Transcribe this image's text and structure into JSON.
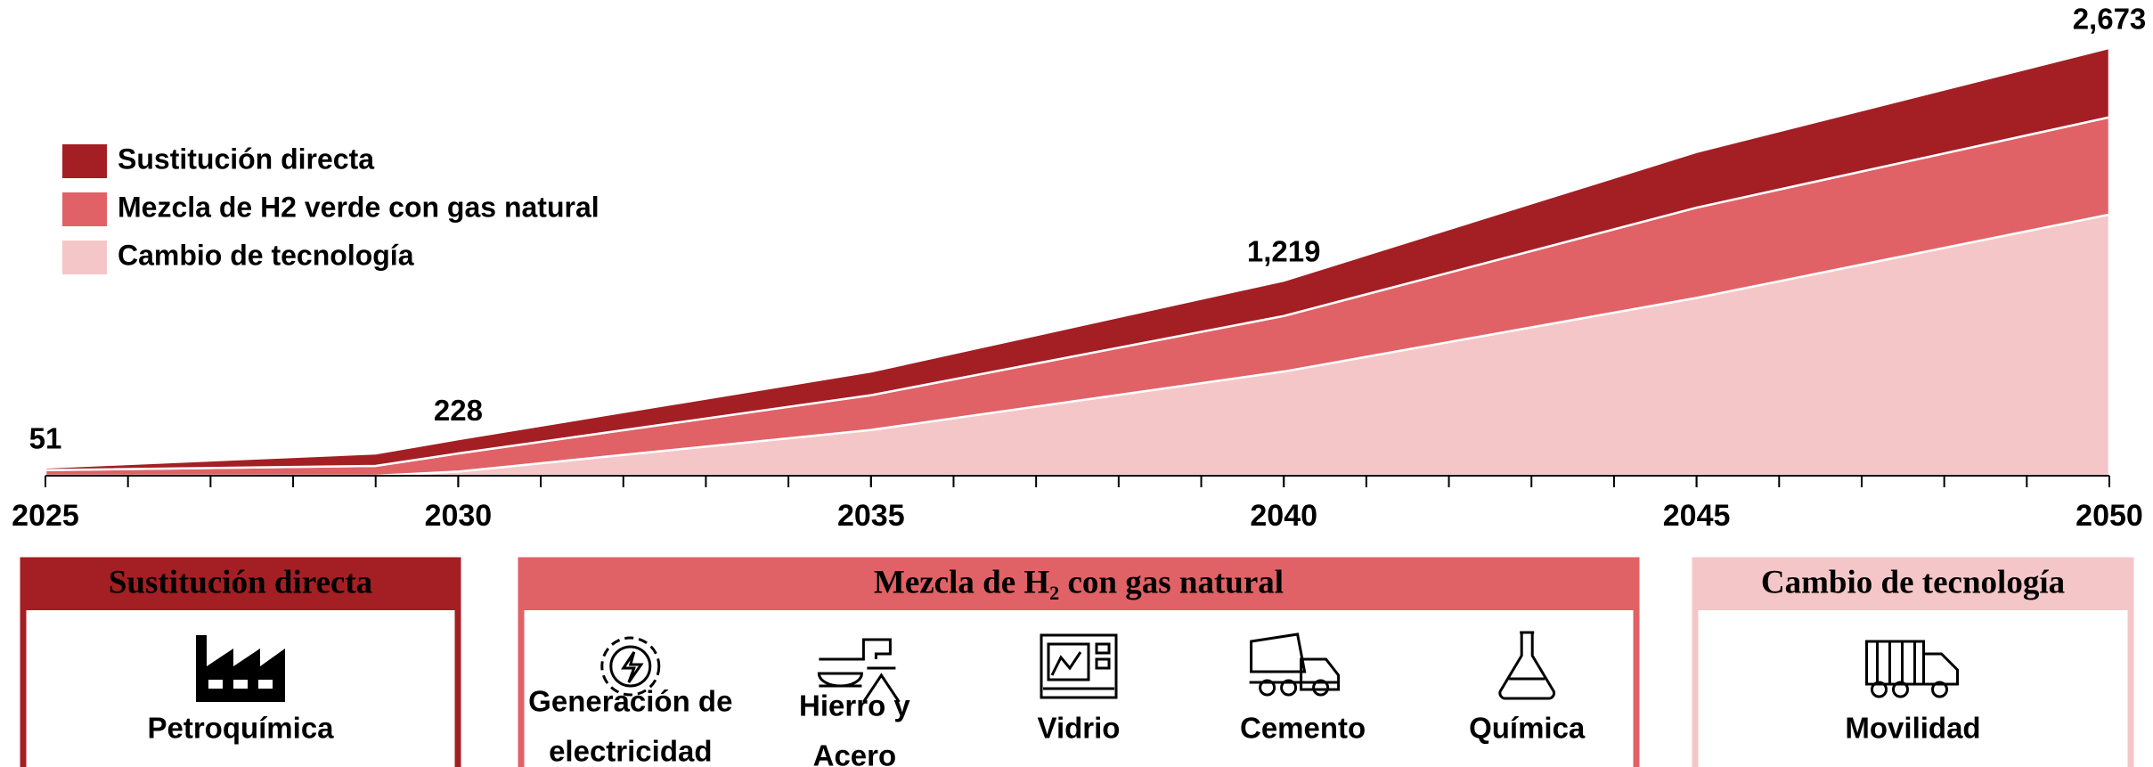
{
  "chart_data": {
    "type": "area",
    "x": [
      2025,
      2029,
      2030,
      2035,
      2040,
      2045,
      2050
    ],
    "series": [
      {
        "name": "Sustitución directa",
        "color": "#a31f24",
        "values": [
          16,
          78,
          89,
          148,
          221,
          348,
          433
        ]
      },
      {
        "name": "Mezcla de H2 verde con gas natural",
        "color": "#e06266",
        "values": [
          35,
          61,
          113,
          217,
          347,
          564,
          608
        ]
      },
      {
        "name": "Cambio de tecnología",
        "color": "#f5c6c8",
        "values": [
          0,
          0,
          26,
          286,
          651,
          1111,
          1632
        ]
      }
    ],
    "totals": {
      "x": [
        2025,
        2030,
        2040,
        2050
      ],
      "values": [
        51,
        228,
        1219,
        2673
      ],
      "value_labels": [
        "51",
        "228",
        "1,219",
        "2,673"
      ]
    },
    "xlim": [
      2025,
      2050
    ],
    "xticks": [
      2025,
      2030,
      2035,
      2040,
      2045,
      2050
    ],
    "xminorticks": [
      2025,
      2026,
      2027,
      2028,
      2029,
      2030,
      2031,
      2032,
      2033,
      2034,
      2035,
      2036,
      2037,
      2038,
      2039,
      2040,
      2041,
      2042,
      2043,
      2044,
      2045,
      2046,
      2047,
      2048,
      2049,
      2050
    ],
    "ylim": [
      0,
      2900
    ],
    "legend": "upper left"
  },
  "panels": [
    {
      "title": "Sustitución directa",
      "color": "#a31f24",
      "items": [
        {
          "label": [
            "Petroquímica"
          ]
        }
      ]
    },
    {
      "title": "Mezcla de H₂ con gas natural",
      "color": "#e06266",
      "items": [
        {
          "label": [
            "Generación de",
            "electricidad"
          ]
        },
        {
          "label": [
            "Hierro y",
            "Acero"
          ]
        },
        {
          "label": [
            "Vidrio"
          ]
        },
        {
          "label": [
            "Cemento"
          ]
        },
        {
          "label": [
            "Química"
          ]
        }
      ]
    },
    {
      "title": "Cambio de tecnología",
      "color": "#f5c6c8",
      "items": [
        {
          "label": [
            "Movilidad"
          ]
        }
      ]
    }
  ]
}
